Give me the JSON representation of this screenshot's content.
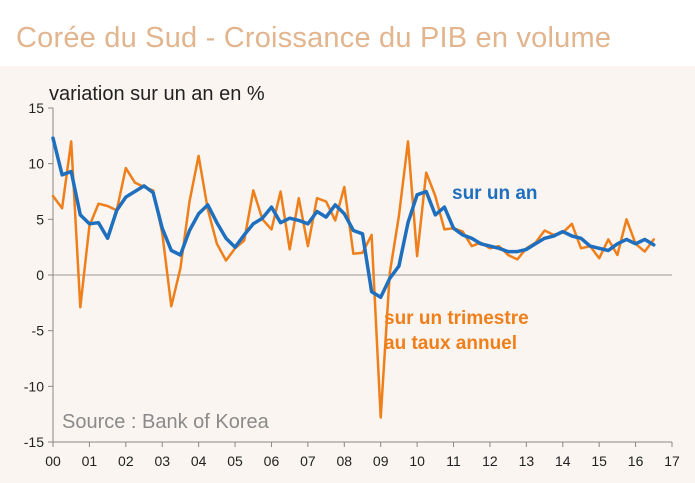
{
  "chart_data": {
    "type": "line",
    "title": "Corée du Sud - Croissance du PIB en volume",
    "ylabel": "variation sur un an en %",
    "source": "Source : Bank of Korea",
    "ylim": [
      -15,
      15
    ],
    "xlim": [
      0,
      17
    ],
    "yticks": [
      15,
      10,
      5,
      0,
      -5,
      -10,
      -15
    ],
    "xticks": [
      "00",
      "01",
      "02",
      "03",
      "04",
      "05",
      "06",
      "07",
      "08",
      "09",
      "10",
      "11",
      "12",
      "13",
      "14",
      "15",
      "16",
      "17"
    ],
    "series": [
      {
        "name": "sur un an",
        "color": "#1f6fbf",
        "x": [
          0,
          0.25,
          0.5,
          0.75,
          1,
          1.25,
          1.5,
          1.75,
          2,
          2.25,
          2.5,
          2.75,
          3,
          3.25,
          3.5,
          3.75,
          4,
          4.25,
          4.5,
          4.75,
          5,
          5.25,
          5.5,
          5.75,
          6,
          6.25,
          6.5,
          6.75,
          7,
          7.25,
          7.5,
          7.75,
          8,
          8.25,
          8.5,
          8.75,
          9,
          9.25,
          9.5,
          9.75,
          10,
          10.25,
          10.5,
          10.75,
          11,
          11.25,
          11.5,
          11.75,
          12,
          12.25,
          12.5,
          12.75,
          13,
          13.25,
          13.5,
          13.75,
          14,
          14.25,
          14.5,
          14.75,
          15,
          15.25,
          15.5,
          15.75,
          16,
          16.25,
          16.5
        ],
        "values": [
          12.3,
          9.0,
          9.3,
          5.4,
          4.6,
          4.7,
          3.3,
          5.8,
          7.0,
          7.5,
          8.0,
          7.4,
          4.2,
          2.2,
          1.8,
          4.0,
          5.5,
          6.3,
          4.7,
          3.3,
          2.5,
          3.6,
          4.6,
          5.1,
          6.1,
          4.7,
          5.1,
          4.9,
          4.6,
          5.7,
          5.2,
          6.3,
          5.5,
          4.0,
          3.7,
          -1.5,
          -2.0,
          -0.3,
          0.8,
          4.7,
          7.2,
          7.5,
          5.4,
          6.1,
          4.2,
          3.6,
          3.3,
          2.8,
          2.6,
          2.4,
          2.1,
          2.1,
          2.3,
          2.8,
          3.3,
          3.5,
          3.9,
          3.5,
          3.3,
          2.6,
          2.4,
          2.2,
          2.8,
          3.2,
          2.8,
          3.2,
          2.7
        ]
      },
      {
        "name": "sur un trimestre au taux annuel",
        "color": "#ef7f1a",
        "x": [
          0,
          0.25,
          0.5,
          0.75,
          1,
          1.25,
          1.5,
          1.75,
          2,
          2.25,
          2.5,
          2.75,
          3,
          3.25,
          3.5,
          3.75,
          4,
          4.25,
          4.5,
          4.75,
          5,
          5.25,
          5.5,
          5.75,
          6,
          6.25,
          6.5,
          6.75,
          7,
          7.25,
          7.5,
          7.75,
          8,
          8.25,
          8.5,
          8.75,
          9,
          9.25,
          9.5,
          9.75,
          10,
          10.25,
          10.5,
          10.75,
          11,
          11.25,
          11.5,
          11.75,
          12,
          12.25,
          12.5,
          12.75,
          13,
          13.25,
          13.5,
          13.75,
          14,
          14.25,
          14.5,
          14.75,
          15,
          15.25,
          15.5,
          15.75,
          16,
          16.25,
          16.5
        ],
        "values": [
          7.1,
          6.0,
          12.0,
          -2.9,
          4.4,
          6.4,
          6.2,
          5.8,
          9.6,
          8.3,
          7.9,
          7.6,
          3.8,
          -2.8,
          0.6,
          6.6,
          10.7,
          5.9,
          2.8,
          1.3,
          2.4,
          3.1,
          7.6,
          5.0,
          4.1,
          7.5,
          2.3,
          6.9,
          2.6,
          6.9,
          6.6,
          4.9,
          7.9,
          1.9,
          2.0,
          3.6,
          -12.8,
          0.2,
          5.3,
          12.0,
          1.7,
          9.2,
          7.1,
          4.1,
          4.2,
          3.9,
          2.6,
          2.9,
          2.4,
          2.6,
          1.8,
          1.4,
          2.4,
          2.9,
          4.0,
          3.6,
          3.8,
          4.6,
          2.4,
          2.6,
          1.5,
          3.2,
          1.8,
          5.0,
          2.8,
          2.1,
          3.2
        ]
      }
    ]
  },
  "labels": {
    "annual": "sur un an",
    "quarter_line1": "sur un trimestre",
    "quarter_line2": "au taux annuel"
  }
}
